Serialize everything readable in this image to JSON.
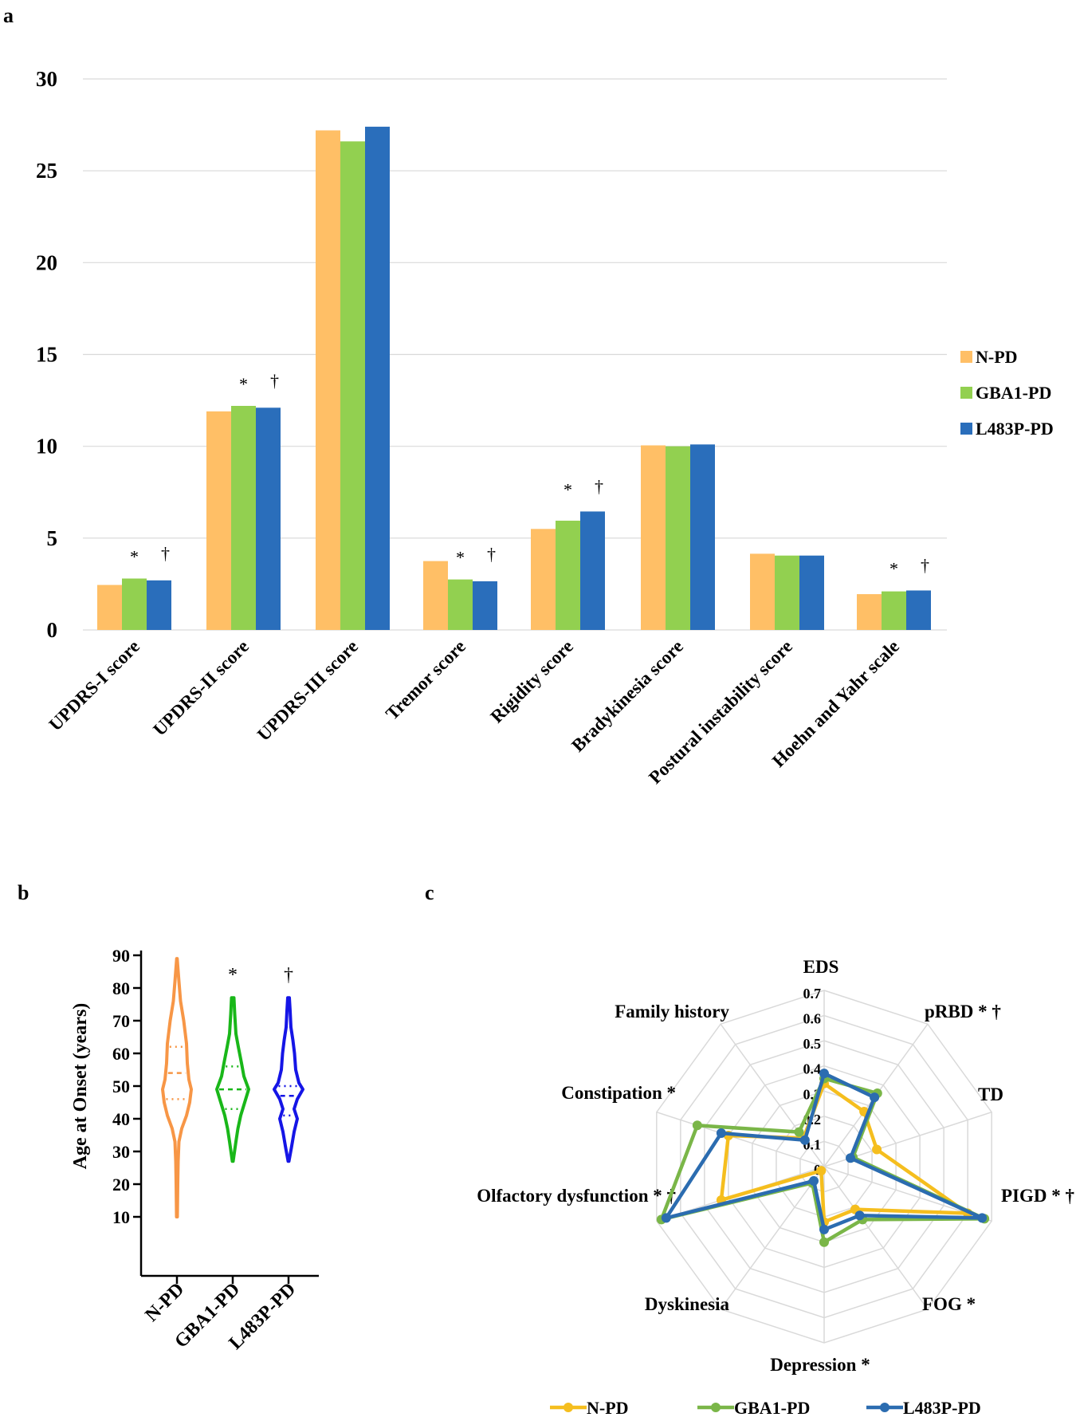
{
  "panels": {
    "a": "a",
    "b": "b",
    "c": "c"
  },
  "colors": {
    "bar": {
      "N-PD": "#FFBF66",
      "GBA1-PD": "#92D050",
      "L483P-PD": "#2A6EBB"
    },
    "violin": {
      "N-PD": "#F79646",
      "GBA1-PD": "#19B719",
      "L483P-PD": "#1515E6"
    },
    "radar": {
      "N-PD": "#F5BE1E",
      "GBA1-PD": "#7AB648",
      "L483P-PD": "#2B6CB0"
    },
    "grid": "#D9D9D9"
  },
  "chart_data": [
    {
      "panel": "a",
      "type": "bar",
      "categories": [
        "UPDRS-I score",
        "UPDRS-II score",
        "UPDRS-III score",
        "Tremor score",
        "Rigidity score",
        "Bradykinesia score",
        "Postural instability score",
        "Hoehn and Yahr scale"
      ],
      "series": [
        {
          "name": "N-PD",
          "values": [
            2.45,
            11.9,
            27.2,
            3.75,
            5.5,
            10.05,
            4.15,
            1.95
          ]
        },
        {
          "name": "GBA1-PD",
          "values": [
            2.8,
            12.2,
            26.6,
            2.75,
            5.95,
            10.0,
            4.05,
            2.1
          ]
        },
        {
          "name": "L483P-PD",
          "values": [
            2.7,
            12.1,
            27.4,
            2.65,
            6.45,
            10.1,
            4.05,
            2.15
          ]
        }
      ],
      "annotations": [
        {
          "category": "UPDRS-I score",
          "marks": [
            "*",
            "†"
          ]
        },
        {
          "category": "UPDRS-II score",
          "marks": [
            "*",
            "†"
          ]
        },
        {
          "category": "Tremor score",
          "marks": [
            "*",
            "†"
          ]
        },
        {
          "category": "Rigidity score",
          "marks": [
            "*",
            "†"
          ]
        },
        {
          "category": "Hoehn and Yahr scale",
          "marks": [
            "*",
            "†"
          ]
        }
      ],
      "ylim": [
        0,
        30
      ],
      "yticks": [
        0,
        5,
        10,
        15,
        20,
        25,
        30
      ],
      "grid": true,
      "legend": "right"
    },
    {
      "panel": "b",
      "type": "violin",
      "ylabel": "Age at Onset (years)",
      "categories": [
        "N-PD",
        "GBA1-PD",
        "L483P-PD"
      ],
      "ylim": [
        10,
        90
      ],
      "yticks": [
        10,
        20,
        30,
        40,
        50,
        60,
        70,
        80,
        90
      ],
      "groups": [
        {
          "name": "N-PD",
          "min": 10,
          "max": 89,
          "q1": 46,
          "median": 54,
          "q3": 62,
          "mode": 50
        },
        {
          "name": "GBA1-PD",
          "min": 27,
          "max": 77,
          "q1": 43,
          "median": 49,
          "q3": 56,
          "mode": 49
        },
        {
          "name": "L483P-PD",
          "min": 27,
          "max": 77,
          "q1": 41,
          "median": 47,
          "q3": 50,
          "mode": 49
        }
      ],
      "annotations": [
        {
          "category": "GBA1-PD",
          "mark": "*"
        },
        {
          "category": "L483P-PD",
          "mark": "†"
        }
      ]
    },
    {
      "panel": "c",
      "type": "radar",
      "axes": [
        "EDS",
        "pRBD * †",
        "TD",
        "PIGD * †",
        "FOG *",
        "Depression *",
        "Dyskinesia",
        "Olfactory dysfunction  * †",
        "Constipation *",
        "Family history"
      ],
      "rticks": [
        "0",
        "0.1",
        "0.2",
        "0.3",
        "0.4",
        "0.5",
        "0.6",
        "0.7"
      ],
      "rlim": [
        0,
        0.7
      ],
      "series": [
        {
          "name": "N-PD",
          "values": [
            0.33,
            0.27,
            0.22,
            0.6,
            0.21,
            0.22,
            0.02,
            0.43,
            0.4,
            0.14
          ]
        },
        {
          "name": "GBA1-PD",
          "values": [
            0.35,
            0.36,
            0.12,
            0.67,
            0.26,
            0.3,
            0.08,
            0.68,
            0.53,
            0.17
          ]
        },
        {
          "name": "L483P-PD",
          "values": [
            0.37,
            0.34,
            0.11,
            0.66,
            0.24,
            0.25,
            0.07,
            0.66,
            0.43,
            0.13
          ]
        }
      ],
      "legend": "bottom"
    }
  ]
}
